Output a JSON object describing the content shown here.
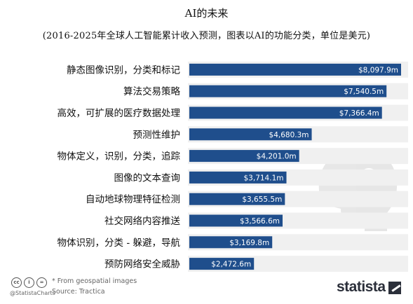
{
  "title": "AI的未来",
  "subtitle": "(2016-2025年全球人工智能累计收入预测，图表以AI的功能分类，单位是美元)",
  "chart_data": {
    "type": "bar",
    "orientation": "horizontal",
    "categories": [
      "静态图像识别，分类和标记",
      "算法交易策略",
      "高效，可扩展的医疗数据处理",
      "预测性维护",
      "物体定义，识别，分类，追踪",
      "图像的文本查询",
      "自动地球物理特征检测",
      "社交网络内容推送",
      "物体识别，分类 - 躲避，导航",
      "预防网络安全威胁"
    ],
    "values": [
      8097.9,
      7540.5,
      7366.4,
      4680.3,
      4201.0,
      3714.1,
      3655.5,
      3566.6,
      3169.8,
      2472.6
    ],
    "value_labels": [
      "$8,097.9m",
      "$7,540.5m",
      "$7,366.4m",
      "$4,680.3m",
      "$4,201.0m",
      "$3,714.1m",
      "$3,655.5m",
      "$3,566.6m",
      "$3,169.8m",
      "$2,472.6m"
    ],
    "unit": "million USD",
    "xlim": [
      0,
      8097.9
    ],
    "bar_color": "#1f4e8c",
    "track_color": "#f0f0f0",
    "label_color": "#ffffff",
    "grid": false,
    "legend": "none"
  },
  "footer": {
    "note": "* From geospatial images",
    "source": "Source: Tractica",
    "handle": "@StatistaCharts",
    "brand": "statista",
    "cc_icons": [
      "cc",
      "i",
      "="
    ]
  }
}
